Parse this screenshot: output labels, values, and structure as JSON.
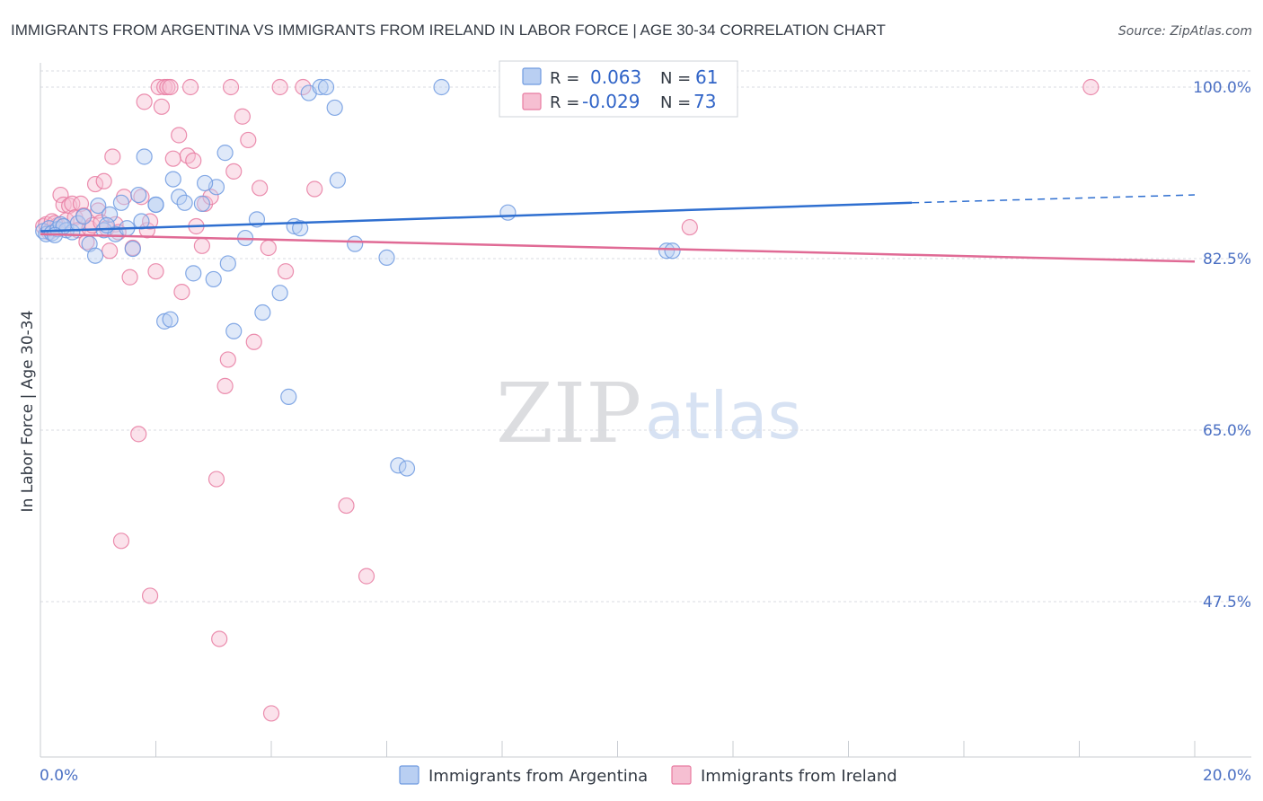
{
  "chart_data": {
    "type": "scatter",
    "title": "IMMIGRANTS FROM ARGENTINA VS IMMIGRANTS FROM IRELAND IN LABOR FORCE | AGE 30-34 CORRELATION CHART",
    "source": "Source: ZipAtlas.com",
    "xlabel": "",
    "ylabel": "In Labor Force | Age 30-34",
    "xlim": [
      0,
      20
    ],
    "ylim": [
      31,
      102
    ],
    "x_tick_labels": [
      "0.0%",
      "20.0%"
    ],
    "y_ticks": [
      100,
      82.5,
      65,
      47.5
    ],
    "y_tick_labels": [
      "100.0%",
      "82.5%",
      "65.0%",
      "47.5%"
    ],
    "grid": true,
    "watermark": {
      "zip": "ZIP",
      "atlas": "atlas"
    },
    "legend_stats": [
      {
        "r_label": "R =",
        "r_value": "0.063",
        "n_label": "N =",
        "n_value": "61"
      },
      {
        "r_label": "R =",
        "r_value": "-0.029",
        "n_label": "N =",
        "n_value": "73"
      }
    ],
    "series": [
      {
        "name": "Immigrants from Argentina",
        "color": "#6f9ae0",
        "fill": "#b9cff2",
        "trend": {
          "x0": 0,
          "y0": 85.3,
          "x1": 15.1,
          "y1": 88.2,
          "dash_x1": 20,
          "dash_y1": 89.0
        },
        "points": [
          [
            0.05,
            85.3
          ],
          [
            0.1,
            85.0
          ],
          [
            0.15,
            85.6
          ],
          [
            0.2,
            85.1
          ],
          [
            0.3,
            85.5
          ],
          [
            0.35,
            86.0
          ],
          [
            0.45,
            85.4
          ],
          [
            0.55,
            85.2
          ],
          [
            0.65,
            86.1
          ],
          [
            0.75,
            86.8
          ],
          [
            0.85,
            84.0
          ],
          [
            0.95,
            82.8
          ],
          [
            1.0,
            87.9
          ],
          [
            1.1,
            85.4
          ],
          [
            1.2,
            87.0
          ],
          [
            1.3,
            85.0
          ],
          [
            1.4,
            88.2
          ],
          [
            1.5,
            85.6
          ],
          [
            1.6,
            83.5
          ],
          [
            1.7,
            89.0
          ],
          [
            1.75,
            86.3
          ],
          [
            1.8,
            92.9
          ],
          [
            2.0,
            88.0
          ],
          [
            2.15,
            76.1
          ],
          [
            2.25,
            76.3
          ],
          [
            2.3,
            90.6
          ],
          [
            2.4,
            88.8
          ],
          [
            2.5,
            88.2
          ],
          [
            2.65,
            81.0
          ],
          [
            2.8,
            88.1
          ],
          [
            3.0,
            80.4
          ],
          [
            3.05,
            89.8
          ],
          [
            3.25,
            82.0
          ],
          [
            3.35,
            75.1
          ],
          [
            3.55,
            84.6
          ],
          [
            3.75,
            86.5
          ],
          [
            3.85,
            77.0
          ],
          [
            4.15,
            79.0
          ],
          [
            4.3,
            68.4
          ],
          [
            4.4,
            85.8
          ],
          [
            4.5,
            85.6
          ],
          [
            4.65,
            99.4
          ],
          [
            4.85,
            100.0
          ],
          [
            4.95,
            100.0
          ],
          [
            5.1,
            97.9
          ],
          [
            5.15,
            90.5
          ],
          [
            5.45,
            84.0
          ],
          [
            6.0,
            82.6
          ],
          [
            6.2,
            61.4
          ],
          [
            6.35,
            61.1
          ],
          [
            6.95,
            100.0
          ],
          [
            8.1,
            87.2
          ],
          [
            8.35,
            100.0
          ],
          [
            10.85,
            83.3
          ],
          [
            10.95,
            83.3
          ],
          [
            3.2,
            93.3
          ],
          [
            2.85,
            90.2
          ],
          [
            0.4,
            85.8
          ],
          [
            1.15,
            85.9
          ],
          [
            0.25,
            84.9
          ],
          [
            2.0,
            88.0
          ]
        ]
      },
      {
        "name": "Immigrants from Ireland",
        "color": "#e87ba1",
        "fill": "#f6bfd2",
        "trend": {
          "x0": 0,
          "y0": 85.0,
          "x1": 20,
          "y1": 82.2
        },
        "points": [
          [
            0.05,
            85.8
          ],
          [
            0.1,
            86.0
          ],
          [
            0.15,
            85.2
          ],
          [
            0.2,
            86.3
          ],
          [
            0.3,
            85.9
          ],
          [
            0.35,
            89.0
          ],
          [
            0.4,
            88.0
          ],
          [
            0.45,
            86.4
          ],
          [
            0.5,
            87.9
          ],
          [
            0.55,
            88.1
          ],
          [
            0.6,
            86.7
          ],
          [
            0.65,
            85.4
          ],
          [
            0.7,
            88.1
          ],
          [
            0.75,
            86.9
          ],
          [
            0.8,
            84.2
          ],
          [
            0.85,
            85.6
          ],
          [
            0.9,
            85.9
          ],
          [
            0.95,
            90.1
          ],
          [
            1.0,
            87.4
          ],
          [
            1.05,
            86.2
          ],
          [
            1.1,
            90.4
          ],
          [
            1.15,
            85.6
          ],
          [
            1.2,
            83.3
          ],
          [
            1.25,
            92.9
          ],
          [
            1.3,
            86.0
          ],
          [
            1.35,
            85.2
          ],
          [
            1.45,
            88.8
          ],
          [
            1.55,
            80.6
          ],
          [
            1.6,
            83.6
          ],
          [
            1.7,
            64.6
          ],
          [
            1.75,
            88.8
          ],
          [
            1.85,
            85.4
          ],
          [
            1.9,
            86.3
          ],
          [
            2.0,
            81.2
          ],
          [
            2.05,
            100.0
          ],
          [
            2.1,
            98.0
          ],
          [
            2.15,
            100.0
          ],
          [
            2.2,
            100.0
          ],
          [
            2.3,
            92.7
          ],
          [
            2.4,
            95.1
          ],
          [
            2.45,
            79.1
          ],
          [
            2.55,
            93.0
          ],
          [
            2.65,
            92.5
          ],
          [
            2.7,
            85.8
          ],
          [
            2.8,
            83.8
          ],
          [
            2.85,
            88.1
          ],
          [
            2.95,
            88.8
          ],
          [
            3.05,
            60.0
          ],
          [
            3.1,
            43.7
          ],
          [
            3.2,
            69.5
          ],
          [
            3.25,
            72.2
          ],
          [
            3.35,
            91.4
          ],
          [
            3.5,
            97.0
          ],
          [
            3.6,
            94.6
          ],
          [
            3.7,
            74.0
          ],
          [
            3.8,
            89.7
          ],
          [
            3.95,
            83.6
          ],
          [
            4.0,
            36.1
          ],
          [
            4.15,
            100.0
          ],
          [
            4.25,
            81.2
          ],
          [
            4.55,
            100.0
          ],
          [
            4.75,
            89.6
          ],
          [
            5.3,
            57.3
          ],
          [
            5.65,
            50.1
          ],
          [
            11.25,
            85.7
          ],
          [
            18.2,
            100.0
          ],
          [
            1.4,
            53.7
          ],
          [
            1.9,
            48.1
          ],
          [
            2.6,
            100.0
          ],
          [
            3.3,
            100.0
          ],
          [
            1.8,
            98.5
          ],
          [
            2.25,
            100.0
          ],
          [
            0.25,
            86.1
          ]
        ]
      }
    ]
  }
}
